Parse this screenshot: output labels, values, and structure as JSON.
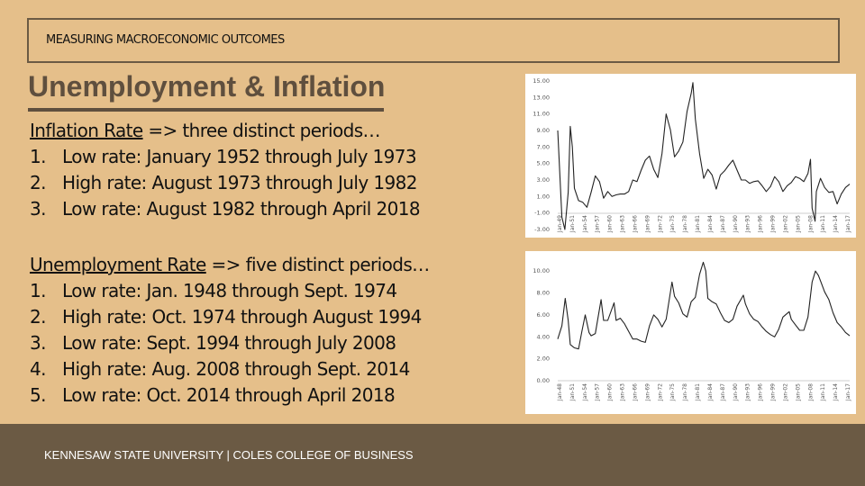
{
  "header": {
    "label": "MEASURING MACROECONOMIC OUTCOMES"
  },
  "title": "Unemployment & Inflation",
  "inflation_section": {
    "heading": "Inflation Rate",
    "heading_suffix": " => three distinct periods…",
    "items": [
      {
        "num": "1.",
        "text": "Low rate: January 1952 through July 1973"
      },
      {
        "num": "2.",
        "text": "High rate: August 1973 through July 1982"
      },
      {
        "num": "3.",
        "text": "Low rate: August 1982 through April 2018"
      }
    ]
  },
  "unemployment_section": {
    "heading": "Unemployment Rate",
    "heading_suffix": " => five distinct periods…",
    "items": [
      {
        "num": "1.",
        "text": "Low rate: Jan. 1948 through Sept. 1974"
      },
      {
        "num": "2.",
        "text": "High rate: Oct. 1974 through August 1994"
      },
      {
        "num": "3.",
        "text": "Low rate: Sept. 1994 through July 2008"
      },
      {
        "num": "4.",
        "text": "High rate: Aug. 2008 through Sept. 2014"
      },
      {
        "num": "5.",
        "text": "Low rate: Oct. 2014 through April 2018"
      }
    ]
  },
  "footer": {
    "text": "KENNESAW STATE UNIVERSITY  |  COLES COLLEGE OF BUSINESS"
  },
  "chart_data": [
    {
      "type": "line",
      "title": "",
      "xlabel": "",
      "ylabel": "",
      "ylim": [
        -3,
        15
      ],
      "yticks": [
        "15.00",
        "13.00",
        "11.00",
        "9.00",
        "7.00",
        "5.00",
        "3.00",
        "1.00",
        "-1.00",
        "-3.00"
      ],
      "ytick_values": [
        15,
        13,
        11,
        9,
        7,
        5,
        3,
        1,
        -1,
        -3
      ],
      "xticks": [
        "Jan-49",
        "Jan-51",
        "Jan-54",
        "Jan-57",
        "Jan-60",
        "Jan-63",
        "Jan-66",
        "Jan-69",
        "Jan-72",
        "Jan-75",
        "Jan-78",
        "Jan-81",
        "Jan-84",
        "Jan-87",
        "Jan-90",
        "Jan-93",
        "Jan-96",
        "Jan-99",
        "Jan-02",
        "Jan-05",
        "Jan-08",
        "Jan-11",
        "Jan-14",
        "Jan-17"
      ],
      "x": [
        1948,
        1949,
        1949.7,
        1950.5,
        1951,
        1951.5,
        1952,
        1953,
        1954,
        1955,
        1956,
        1957,
        1958,
        1959,
        1960,
        1961,
        1962,
        1963,
        1964,
        1965,
        1966,
        1967,
        1968,
        1969,
        1970,
        1971,
        1972,
        1973,
        1974,
        1975,
        1976,
        1977,
        1978,
        1979,
        1980,
        1980.4,
        1981,
        1982,
        1983,
        1984,
        1985,
        1986,
        1987,
        1988,
        1989,
        1990,
        1991,
        1992,
        1993,
        1994,
        1995,
        1996,
        1997,
        1998,
        1999,
        2000,
        2001,
        2002,
        2003,
        2004,
        2005,
        2006,
        2007,
        2008,
        2008.6,
        2009,
        2009.7,
        2010,
        2011,
        2012,
        2013,
        2014,
        2015,
        2016,
        2017,
        2018
      ],
      "values": [
        9.0,
        -1.5,
        -3.0,
        1.5,
        9.5,
        7.0,
        2.0,
        0.5,
        0.3,
        -0.3,
        1.5,
        3.5,
        2.8,
        0.8,
        1.6,
        1.0,
        1.2,
        1.3,
        1.3,
        1.6,
        3.0,
        2.8,
        4.2,
        5.4,
        5.9,
        4.3,
        3.3,
        6.2,
        11.0,
        9.1,
        5.8,
        6.5,
        7.6,
        11.3,
        13.5,
        14.8,
        10.4,
        6.2,
        3.2,
        4.3,
        3.6,
        1.9,
        3.6,
        4.1,
        4.8,
        5.4,
        4.2,
        3.0,
        3.0,
        2.6,
        2.8,
        2.9,
        2.3,
        1.6,
        2.2,
        3.4,
        2.8,
        1.6,
        2.3,
        2.7,
        3.4,
        3.2,
        2.8,
        3.8,
        5.5,
        -0.4,
        -2.0,
        1.6,
        3.2,
        2.1,
        1.5,
        1.6,
        0.1,
        1.3,
        2.1,
        2.5
      ]
    },
    {
      "type": "line",
      "title": "",
      "xlabel": "",
      "ylabel": "",
      "ylim": [
        0,
        11
      ],
      "yticks": [
        "10.00",
        "8.00",
        "6.00",
        "4.00",
        "2.00",
        "0.00"
      ],
      "ytick_values": [
        10,
        8,
        6,
        4,
        2,
        0
      ],
      "xticks": [
        "Jan-48",
        "Jan-51",
        "Jan-54",
        "Jan-57",
        "Jan-60",
        "Jan-63",
        "Jan-66",
        "Jan-69",
        "Jan-72",
        "Jan-75",
        "Jan-78",
        "Jan-81",
        "Jan-84",
        "Jan-87",
        "Jan-90",
        "Jan-93",
        "Jan-96",
        "Jan-99",
        "Jan-02",
        "Jan-05",
        "Jan-08",
        "Jan-11",
        "Jan-14",
        "Jan-17"
      ],
      "x": [
        1948,
        1949,
        1949.8,
        1950.5,
        1951,
        1952,
        1953,
        1953.8,
        1954.6,
        1955.5,
        1956,
        1957,
        1958.4,
        1959,
        1960,
        1961.5,
        1962,
        1963,
        1964,
        1965,
        1966,
        1967,
        1968,
        1969,
        1970,
        1971,
        1972,
        1973,
        1974,
        1975.4,
        1976,
        1977,
        1978,
        1979,
        1980,
        1981,
        1982,
        1982.9,
        1983.5,
        1984,
        1985,
        1986,
        1987,
        1988,
        1989,
        1990,
        1991,
        1992.5,
        1993,
        1994,
        1995,
        1996,
        1997,
        1998,
        1999,
        2000,
        2001,
        2002,
        2003.5,
        2004,
        2005,
        2006,
        2007,
        2008,
        2009,
        2009.8,
        2010.5,
        2011,
        2012,
        2013,
        2014,
        2015,
        2016,
        2017,
        2018
      ],
      "values": [
        3.8,
        5.0,
        7.5,
        5.5,
        3.3,
        3.0,
        2.9,
        4.5,
        6.0,
        4.4,
        4.1,
        4.3,
        7.4,
        5.5,
        5.5,
        7.1,
        5.5,
        5.7,
        5.2,
        4.5,
        3.8,
        3.8,
        3.6,
        3.5,
        5.0,
        6.0,
        5.6,
        4.9,
        5.6,
        9.0,
        7.7,
        7.1,
        6.1,
        5.8,
        7.2,
        7.6,
        9.7,
        10.8,
        10.0,
        7.5,
        7.2,
        7.0,
        6.2,
        5.5,
        5.3,
        5.6,
        6.8,
        7.8,
        7.0,
        6.1,
        5.6,
        5.4,
        4.9,
        4.5,
        4.2,
        4.0,
        4.7,
        5.8,
        6.3,
        5.6,
        5.1,
        4.6,
        4.6,
        5.8,
        9.0,
        10.0,
        9.6,
        9.1,
        8.1,
        7.4,
        6.2,
        5.3,
        4.9,
        4.4,
        4.1
      ]
    }
  ]
}
